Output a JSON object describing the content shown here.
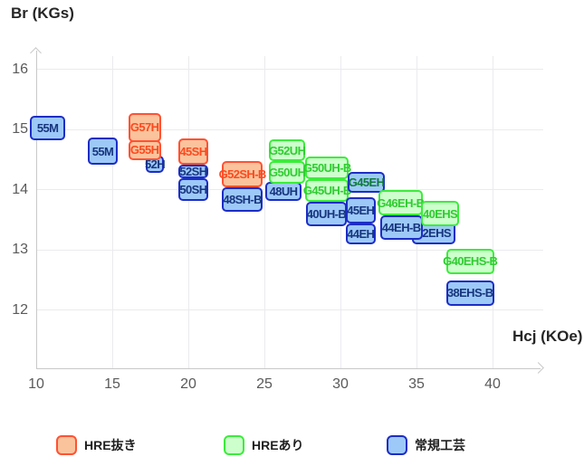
{
  "chart_data": {
    "type": "range-box",
    "title": "",
    "ylabel": "Br (KGs)",
    "xlabel": "Hcj (KOe)",
    "x_ticks": [
      10,
      15,
      20,
      25,
      30,
      35,
      40
    ],
    "y_ticks": [
      16,
      15,
      14,
      13,
      12
    ],
    "xlim": [
      10,
      43.3
    ],
    "ylim": [
      11.0,
      16.3
    ],
    "grid": true,
    "legend_position": "bottom",
    "categories": {
      "hre_removed": {
        "label": "HRE抜き",
        "fill": "#fbc39c",
        "border": "#ff5233",
        "text": "#fb4a1f"
      },
      "hre_added": {
        "label": "HREあり",
        "fill": "#ccffcc",
        "border": "#3cec3c",
        "text": "#2fcc30"
      },
      "conventional": {
        "label": "常規工芸",
        "fill": "#9dc9f8",
        "border": "#1d2dc5",
        "text": "#17357e"
      }
    },
    "legend_order": [
      "hre_removed",
      "hre_added",
      "conventional"
    ],
    "boxes": [
      {
        "label": "55M",
        "category": "conventional",
        "hcj": [
          9.6,
          11.9
        ],
        "br": [
          14.82,
          15.22
        ]
      },
      {
        "label": "55M",
        "category": "conventional",
        "hcj": [
          13.4,
          15.35
        ],
        "br": [
          14.41,
          14.86
        ]
      },
      {
        "label": "52H",
        "category": "conventional",
        "hcj": [
          17.2,
          18.4
        ],
        "br": [
          14.28,
          14.56
        ]
      },
      {
        "label": "G57H",
        "category": "hre_removed",
        "hcj": [
          16.05,
          18.2
        ],
        "br": [
          14.79,
          15.27
        ]
      },
      {
        "label": "G55H",
        "category": "hre_removed",
        "hcj": [
          16.05,
          18.2
        ],
        "br": [
          14.49,
          14.82
        ]
      },
      {
        "label": "52SH",
        "category": "conventional",
        "hcj": [
          19.35,
          21.3
        ],
        "br": [
          14.19,
          14.41
        ]
      },
      {
        "label": "50SH",
        "category": "conventional",
        "hcj": [
          19.35,
          21.3
        ],
        "br": [
          13.81,
          14.19
        ]
      },
      {
        "label": "45SH",
        "category": "hre_removed",
        "hcj": [
          19.35,
          21.3
        ],
        "br": [
          14.41,
          14.85
        ]
      },
      {
        "label": "48SH-B",
        "category": "conventional",
        "hcj": [
          22.2,
          24.9
        ],
        "br": [
          13.63,
          14.04
        ]
      },
      {
        "label": "G52SH-B",
        "category": "hre_removed",
        "hcj": [
          22.2,
          24.9
        ],
        "br": [
          14.04,
          14.47
        ]
      },
      {
        "label": "48UH",
        "category": "conventional",
        "hcj": [
          25.05,
          27.45
        ],
        "br": [
          13.81,
          14.13
        ]
      },
      {
        "label": "G52UH",
        "category": "hre_added",
        "hcj": [
          25.3,
          27.7
        ],
        "br": [
          14.47,
          14.83
        ]
      },
      {
        "label": "G50UH",
        "category": "hre_added",
        "hcj": [
          25.3,
          27.7
        ],
        "br": [
          14.1,
          14.47
        ]
      },
      {
        "label": "G50UH-B",
        "category": "hre_added",
        "hcj": [
          27.7,
          30.55
        ],
        "br": [
          14.17,
          14.55
        ]
      },
      {
        "label": "G45UH-B",
        "category": "hre_added",
        "hcj": [
          27.7,
          30.55
        ],
        "br": [
          13.8,
          14.17
        ]
      },
      {
        "label": "G45EH",
        "category": "conventional",
        "hcj": [
          30.5,
          32.9
        ],
        "br": [
          13.95,
          14.29
        ],
        "text_color": "#0c7a36"
      },
      {
        "label": "40UH-B",
        "category": "conventional",
        "hcj": [
          27.75,
          30.4
        ],
        "br": [
          13.39,
          13.8
        ]
      },
      {
        "label": "45EH",
        "category": "conventional",
        "hcj": [
          30.35,
          32.3
        ],
        "br": [
          13.44,
          13.87
        ]
      },
      {
        "label": "44EH",
        "category": "conventional",
        "hcj": [
          30.35,
          32.3
        ],
        "br": [
          13.09,
          13.44
        ]
      },
      {
        "label": "42EHS",
        "category": "conventional",
        "hcj": [
          34.7,
          37.55
        ],
        "br": [
          13.09,
          13.47
        ]
      },
      {
        "label": "44EH-B",
        "category": "conventional",
        "hcj": [
          32.6,
          35.4
        ],
        "br": [
          13.17,
          13.57
        ]
      },
      {
        "label": "G46EH-B",
        "category": "hre_added",
        "hcj": [
          32.5,
          35.4
        ],
        "br": [
          13.57,
          13.99
        ]
      },
      {
        "label": "40EHS",
        "category": "hre_added",
        "hcj": [
          35.3,
          37.8
        ],
        "br": [
          13.39,
          13.81
        ]
      },
      {
        "label": "G40EHS-B",
        "category": "hre_added",
        "hcj": [
          36.95,
          40.1
        ],
        "br": [
          12.59,
          13.02
        ]
      },
      {
        "label": "38EHS-B",
        "category": "conventional",
        "hcj": [
          36.95,
          40.1
        ],
        "br": [
          12.07,
          12.49
        ]
      }
    ]
  }
}
